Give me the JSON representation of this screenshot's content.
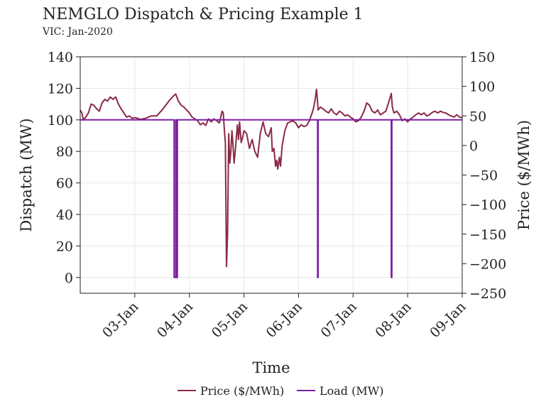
{
  "header": {
    "title": "NEMGLO Dispatch & Pricing Example 1",
    "subtitle": "VIC: Jan-2020"
  },
  "chart_data": {
    "type": "line",
    "xlabel": "Time",
    "ylabel_left": "Dispatch (MW)",
    "ylabel_right": "Price ($/MWh)",
    "x_tick_labels": [
      "03-Jan",
      "04-Jan",
      "05-Jan",
      "06-Jan",
      "07-Jan",
      "08-Jan",
      "09-Jan"
    ],
    "x_range_days": [
      2.0,
      9.0
    ],
    "ylim_left": [
      -10,
      140
    ],
    "ylim_right": [
      -250,
      150
    ],
    "y_ticks_left": [
      0,
      20,
      40,
      60,
      80,
      100,
      120,
      140
    ],
    "y_ticks_right": [
      -250,
      -200,
      -150,
      -100,
      -50,
      0,
      50,
      100,
      150
    ],
    "y_tick_labels_left": [
      "0",
      "20",
      "40",
      "60",
      "80",
      "100",
      "120",
      "140"
    ],
    "y_tick_labels_right": [
      "−250",
      "−200",
      "−150",
      "−100",
      "−50",
      "0",
      "50",
      "100",
      "150"
    ],
    "grid": true,
    "legend_position": "bottom-center",
    "series": [
      {
        "name": "Price ($/MWh)",
        "axis": "right",
        "color": "#8b2a46",
        "points": [
          [
            2.0,
            60
          ],
          [
            2.03,
            55
          ],
          [
            2.06,
            43
          ],
          [
            2.1,
            48
          ],
          [
            2.15,
            55
          ],
          [
            2.2,
            70
          ],
          [
            2.25,
            68
          ],
          [
            2.3,
            62
          ],
          [
            2.35,
            58
          ],
          [
            2.4,
            72
          ],
          [
            2.45,
            78
          ],
          [
            2.5,
            75
          ],
          [
            2.55,
            82
          ],
          [
            2.6,
            78
          ],
          [
            2.65,
            82
          ],
          [
            2.7,
            70
          ],
          [
            2.75,
            62
          ],
          [
            2.8,
            55
          ],
          [
            2.85,
            48
          ],
          [
            2.9,
            50
          ],
          [
            2.95,
            46
          ],
          [
            3.0,
            47
          ],
          [
            3.05,
            46
          ],
          [
            3.1,
            44
          ],
          [
            3.15,
            45
          ],
          [
            3.2,
            46
          ],
          [
            3.3,
            50
          ],
          [
            3.4,
            50
          ],
          [
            3.5,
            60
          ],
          [
            3.6,
            72
          ],
          [
            3.65,
            78
          ],
          [
            3.7,
            83
          ],
          [
            3.75,
            87
          ],
          [
            3.8,
            75
          ],
          [
            3.85,
            68
          ],
          [
            3.9,
            65
          ],
          [
            3.95,
            60
          ],
          [
            4.0,
            55
          ],
          [
            4.05,
            48
          ],
          [
            4.1,
            45
          ],
          [
            4.15,
            42
          ],
          [
            4.2,
            35
          ],
          [
            4.25,
            38
          ],
          [
            4.3,
            34
          ],
          [
            4.35,
            45
          ],
          [
            4.4,
            40
          ],
          [
            4.45,
            45
          ],
          [
            4.5,
            42
          ],
          [
            4.55,
            38
          ],
          [
            4.6,
            58
          ],
          [
            4.62,
            55
          ],
          [
            4.65,
            15
          ],
          [
            4.66,
            5
          ],
          [
            4.68,
            -205
          ],
          [
            4.7,
            -150
          ],
          [
            4.72,
            20
          ],
          [
            4.74,
            -30
          ],
          [
            4.76,
            -10
          ],
          [
            4.78,
            25
          ],
          [
            4.8,
            0
          ],
          [
            4.82,
            -30
          ],
          [
            4.85,
            0
          ],
          [
            4.88,
            35
          ],
          [
            4.9,
            10
          ],
          [
            4.92,
            40
          ],
          [
            4.95,
            5
          ],
          [
            4.98,
            15
          ],
          [
            5.0,
            25
          ],
          [
            5.05,
            20
          ],
          [
            5.1,
            -5
          ],
          [
            5.15,
            10
          ],
          [
            5.2,
            -10
          ],
          [
            5.25,
            -20
          ],
          [
            5.3,
            20
          ],
          [
            5.35,
            40
          ],
          [
            5.4,
            20
          ],
          [
            5.45,
            15
          ],
          [
            5.5,
            30
          ],
          [
            5.52,
            -10
          ],
          [
            5.55,
            -5
          ],
          [
            5.58,
            -35
          ],
          [
            5.6,
            -25
          ],
          [
            5.62,
            -40
          ],
          [
            5.65,
            -20
          ],
          [
            5.67,
            -35
          ],
          [
            5.7,
            0
          ],
          [
            5.75,
            25
          ],
          [
            5.8,
            38
          ],
          [
            5.85,
            40
          ],
          [
            5.9,
            42
          ],
          [
            5.95,
            38
          ],
          [
            6.0,
            30
          ],
          [
            6.05,
            35
          ],
          [
            6.1,
            32
          ],
          [
            6.15,
            34
          ],
          [
            6.2,
            42
          ],
          [
            6.25,
            55
          ],
          [
            6.28,
            65
          ],
          [
            6.3,
            75
          ],
          [
            6.33,
            95
          ],
          [
            6.36,
            60
          ],
          [
            6.4,
            65
          ],
          [
            6.45,
            62
          ],
          [
            6.5,
            58
          ],
          [
            6.55,
            55
          ],
          [
            6.6,
            62
          ],
          [
            6.65,
            55
          ],
          [
            6.7,
            52
          ],
          [
            6.75,
            58
          ],
          [
            6.8,
            55
          ],
          [
            6.85,
            50
          ],
          [
            6.9,
            52
          ],
          [
            6.95,
            48
          ],
          [
            7.0,
            45
          ],
          [
            7.05,
            40
          ],
          [
            7.1,
            42
          ],
          [
            7.15,
            48
          ],
          [
            7.2,
            58
          ],
          [
            7.25,
            72
          ],
          [
            7.3,
            68
          ],
          [
            7.35,
            58
          ],
          [
            7.4,
            55
          ],
          [
            7.45,
            60
          ],
          [
            7.5,
            52
          ],
          [
            7.55,
            55
          ],
          [
            7.6,
            58
          ],
          [
            7.65,
            72
          ],
          [
            7.7,
            88
          ],
          [
            7.72,
            65
          ],
          [
            7.75,
            55
          ],
          [
            7.8,
            58
          ],
          [
            7.85,
            52
          ],
          [
            7.9,
            42
          ],
          [
            7.95,
            45
          ],
          [
            8.0,
            40
          ],
          [
            8.05,
            45
          ],
          [
            8.1,
            48
          ],
          [
            8.15,
            52
          ],
          [
            8.2,
            55
          ],
          [
            8.25,
            52
          ],
          [
            8.3,
            55
          ],
          [
            8.35,
            50
          ],
          [
            8.4,
            52
          ],
          [
            8.45,
            56
          ],
          [
            8.5,
            58
          ],
          [
            8.55,
            55
          ],
          [
            8.6,
            58
          ],
          [
            8.65,
            56
          ],
          [
            8.7,
            55
          ],
          [
            8.75,
            52
          ],
          [
            8.8,
            50
          ],
          [
            8.85,
            48
          ],
          [
            8.9,
            52
          ],
          [
            8.95,
            48
          ],
          [
            9.0,
            47
          ]
        ]
      },
      {
        "name": "Load (MW)",
        "axis": "left",
        "color": "#7b1fa2",
        "points": [
          [
            2.0,
            100
          ],
          [
            3.72,
            100
          ],
          [
            3.72,
            0
          ],
          [
            3.75,
            0
          ],
          [
            3.75,
            100
          ],
          [
            3.77,
            100
          ],
          [
            3.77,
            0
          ],
          [
            3.78,
            0
          ],
          [
            3.78,
            100
          ],
          [
            6.35,
            100
          ],
          [
            6.35,
            0
          ],
          [
            6.36,
            0
          ],
          [
            6.36,
            100
          ],
          [
            7.7,
            100
          ],
          [
            7.7,
            0
          ],
          [
            7.71,
            0
          ],
          [
            7.71,
            100
          ],
          [
            9.0,
            100
          ]
        ]
      }
    ]
  }
}
